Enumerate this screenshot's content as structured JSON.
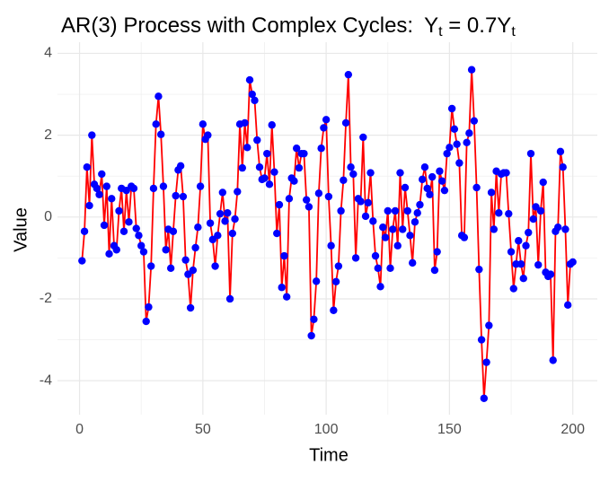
{
  "chart_data": {
    "type": "line",
    "title": "AR(3) Process with Complex Cycles:",
    "title_formula": [
      "Y",
      "t",
      " = 0.7Y",
      "t"
    ],
    "x_label": "Time",
    "y_label": "Value",
    "x": [
      1,
      2,
      3,
      4,
      5,
      6,
      7,
      8,
      9,
      10,
      11,
      12,
      13,
      14,
      15,
      16,
      17,
      18,
      19,
      20,
      21,
      22,
      23,
      24,
      25,
      26,
      27,
      28,
      29,
      30,
      31,
      32,
      33,
      34,
      35,
      36,
      37,
      38,
      39,
      40,
      41,
      42,
      43,
      44,
      45,
      46,
      47,
      48,
      49,
      50,
      51,
      52,
      53,
      54,
      55,
      56,
      57,
      58,
      59,
      60,
      61,
      62,
      63,
      64,
      65,
      66,
      67,
      68,
      69,
      70,
      71,
      72,
      73,
      74,
      75,
      76,
      77,
      78,
      79,
      80,
      81,
      82,
      83,
      84,
      85,
      86,
      87,
      88,
      89,
      90,
      91,
      92,
      93,
      94,
      95,
      96,
      97,
      98,
      99,
      100,
      101,
      102,
      103,
      104,
      105,
      106,
      107,
      108,
      109,
      110,
      111,
      112,
      113,
      114,
      115,
      116,
      117,
      118,
      119,
      120,
      121,
      122,
      123,
      124,
      125,
      126,
      127,
      128,
      129,
      130,
      131,
      132,
      133,
      134,
      135,
      136,
      137,
      138,
      139,
      140,
      141,
      142,
      143,
      144,
      145,
      146,
      147,
      148,
      149,
      150,
      151,
      152,
      153,
      154,
      155,
      156,
      157,
      158,
      159,
      160,
      161,
      162,
      163,
      164,
      165,
      166,
      167,
      168,
      169,
      170,
      171,
      172,
      173,
      174,
      175,
      176,
      177,
      178,
      179,
      180,
      181,
      182,
      183,
      184,
      185,
      186,
      187,
      188,
      189,
      190,
      191,
      192,
      193,
      194,
      195,
      196,
      197,
      198,
      199,
      200
    ],
    "series": [
      {
        "line_color": "#ff0000",
        "point_color": "#0000ff",
        "values": [
          -1.07,
          -0.35,
          1.22,
          0.28,
          2.0,
          0.8,
          0.7,
          0.55,
          1.05,
          -0.2,
          0.75,
          -0.9,
          0.45,
          -0.7,
          -0.8,
          0.15,
          0.7,
          -0.35,
          0.65,
          -0.12,
          0.75,
          0.7,
          -0.28,
          -0.45,
          -0.7,
          -0.85,
          -2.55,
          -2.2,
          -1.2,
          0.7,
          2.27,
          2.95,
          2.02,
          0.75,
          -0.8,
          -0.3,
          -1.25,
          -0.35,
          0.52,
          1.15,
          1.25,
          0.5,
          -1.05,
          -1.4,
          -2.22,
          -1.3,
          -0.75,
          -0.25,
          0.75,
          2.27,
          1.9,
          2.0,
          -0.15,
          -0.55,
          -1.2,
          -0.45,
          0.08,
          0.6,
          -0.1,
          0.1,
          -2.0,
          -0.4,
          -0.05,
          0.62,
          2.27,
          1.2,
          2.3,
          1.7,
          3.35,
          3.0,
          2.85,
          1.88,
          1.22,
          0.92,
          0.95,
          1.55,
          0.8,
          2.25,
          1.1,
          -0.4,
          0.3,
          -1.72,
          -0.95,
          -1.95,
          0.45,
          0.95,
          0.88,
          1.68,
          1.2,
          1.55,
          1.55,
          0.42,
          0.25,
          -2.9,
          -2.5,
          -1.57,
          0.58,
          1.68,
          2.18,
          2.38,
          0.5,
          -0.7,
          -2.28,
          -1.58,
          -1.2,
          0.15,
          0.9,
          2.3,
          3.48,
          1.22,
          1.05,
          -1.0,
          0.45,
          0.38,
          1.95,
          0.02,
          0.35,
          1.08,
          -0.1,
          -0.95,
          -1.25,
          -1.7,
          -0.25,
          -0.5,
          0.15,
          -1.25,
          -0.3,
          0.15,
          -0.7,
          1.08,
          -0.3,
          0.72,
          0.15,
          -0.45,
          -1.12,
          -0.12,
          0.1,
          0.3,
          0.92,
          1.22,
          0.7,
          0.55,
          0.98,
          -1.3,
          -0.85,
          1.12,
          0.88,
          0.65,
          1.55,
          1.7,
          2.65,
          2.15,
          1.78,
          1.32,
          -0.45,
          -0.5,
          1.82,
          2.05,
          3.6,
          2.35,
          0.72,
          -1.28,
          -3.0,
          -4.43,
          -3.55,
          -2.65,
          0.6,
          -0.3,
          1.12,
          0.1,
          1.05,
          1.08,
          1.08,
          0.08,
          -0.85,
          -1.75,
          -1.15,
          -0.58,
          -1.15,
          -1.5,
          -0.7,
          -0.38,
          1.55,
          -0.05,
          0.25,
          -1.17,
          0.15,
          0.85,
          -1.35,
          -1.45,
          -1.4,
          -3.5,
          -0.35,
          -0.25,
          1.6,
          1.22,
          -0.3,
          -2.15,
          -1.15,
          -1.1
        ]
      }
    ],
    "xlim": [
      -8.95,
      209.95
    ],
    "ylim": [
      -4.83,
      4.01
    ],
    "xticks": [
      0,
      50,
      100,
      150,
      200
    ],
    "yticks": [
      -4,
      -2,
      0,
      2,
      4
    ],
    "minor_xticks": [
      25,
      75,
      125,
      175
    ],
    "minor_yticks": [
      -3,
      -1,
      1,
      3
    ],
    "grid": true
  }
}
